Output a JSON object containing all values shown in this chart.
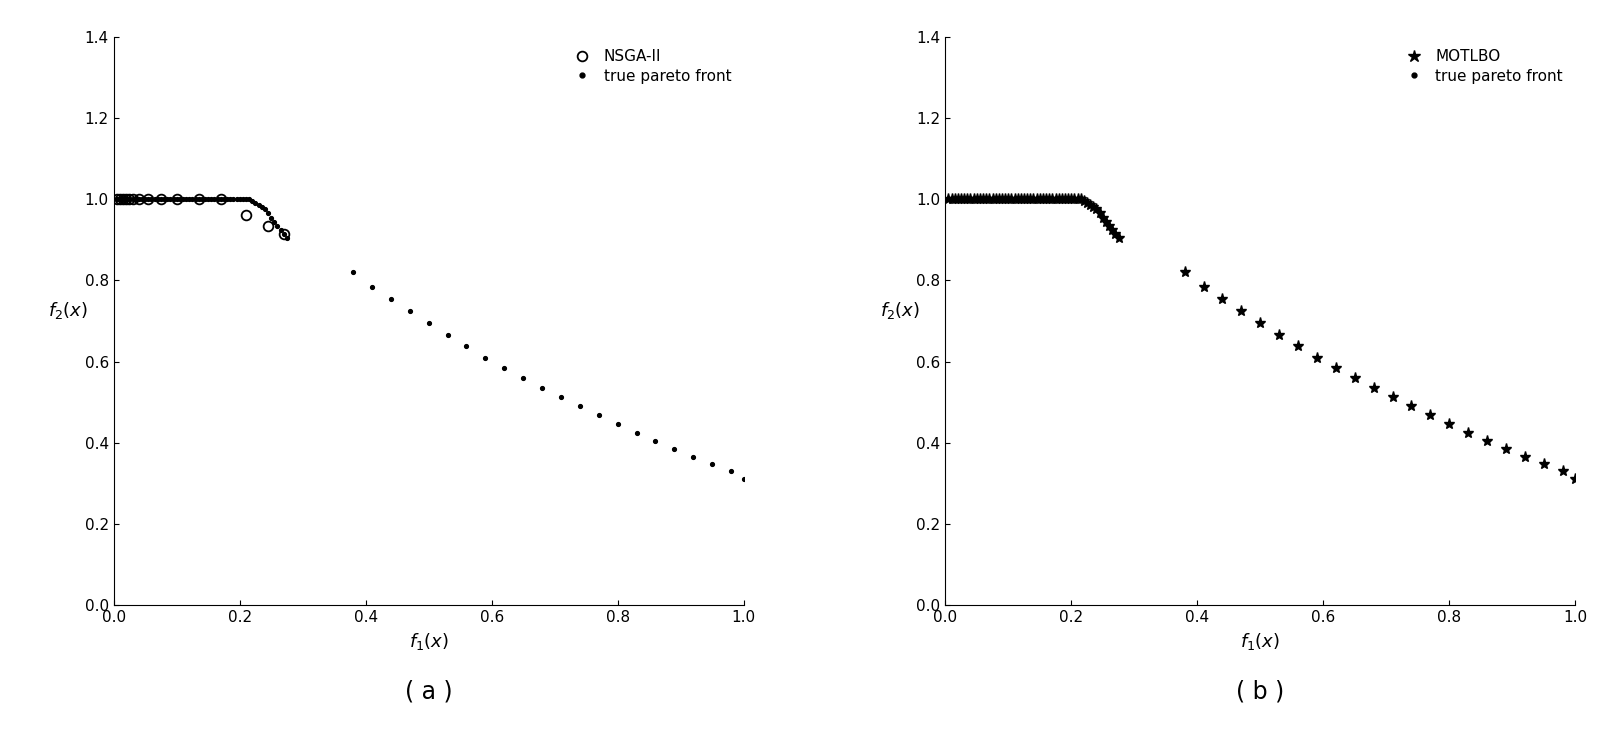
{
  "true_pareto_x": [
    0.005,
    0.01,
    0.015,
    0.02,
    0.025,
    0.03,
    0.035,
    0.04,
    0.045,
    0.05,
    0.055,
    0.06,
    0.065,
    0.07,
    0.075,
    0.08,
    0.085,
    0.09,
    0.095,
    0.1,
    0.105,
    0.11,
    0.115,
    0.12,
    0.125,
    0.13,
    0.135,
    0.14,
    0.145,
    0.15,
    0.155,
    0.16,
    0.165,
    0.17,
    0.175,
    0.18,
    0.185,
    0.19,
    0.195,
    0.2,
    0.205,
    0.21,
    0.215,
    0.22,
    0.225,
    0.23,
    0.235,
    0.24,
    0.245,
    0.25,
    0.255,
    0.26,
    0.265,
    0.27,
    0.275,
    0.38,
    0.41,
    0.44,
    0.47,
    0.5,
    0.53,
    0.56,
    0.59,
    0.62,
    0.65,
    0.68,
    0.71,
    0.74,
    0.77,
    0.8,
    0.83,
    0.86,
    0.89,
    0.92,
    0.95,
    0.98,
    1.0
  ],
  "true_pareto_y": [
    1.0,
    1.0,
    1.0,
    1.0,
    1.0,
    1.0,
    1.0,
    1.0,
    1.0,
    1.0,
    1.0,
    1.0,
    1.0,
    1.0,
    1.0,
    1.0,
    1.0,
    1.0,
    1.0,
    1.0,
    1.0,
    1.0,
    1.0,
    1.0,
    1.0,
    1.0,
    1.0,
    1.0,
    1.0,
    1.0,
    1.0,
    1.0,
    1.0,
    1.0,
    1.0,
    1.0,
    1.0,
    1.0,
    1.0,
    1.0,
    1.0,
    1.0,
    1.0,
    0.995,
    0.99,
    0.985,
    0.98,
    0.975,
    0.965,
    0.955,
    0.945,
    0.935,
    0.925,
    0.915,
    0.905,
    0.82,
    0.785,
    0.755,
    0.725,
    0.695,
    0.665,
    0.638,
    0.61,
    0.585,
    0.56,
    0.535,
    0.512,
    0.49,
    0.468,
    0.447,
    0.425,
    0.405,
    0.385,
    0.365,
    0.348,
    0.33,
    0.31
  ],
  "nsga2_x": [
    0.005,
    0.01,
    0.015,
    0.02,
    0.025,
    0.03,
    0.04,
    0.055,
    0.075,
    0.1,
    0.135,
    0.17,
    0.21,
    0.245,
    0.27
  ],
  "nsga2_y": [
    1.0,
    1.0,
    1.0,
    1.0,
    1.0,
    1.0,
    1.0,
    1.0,
    1.0,
    1.0,
    1.0,
    1.0,
    0.96,
    0.935,
    0.915
  ],
  "motlbo_x": [
    0.005,
    0.01,
    0.015,
    0.02,
    0.025,
    0.03,
    0.035,
    0.04,
    0.045,
    0.05,
    0.055,
    0.06,
    0.065,
    0.07,
    0.075,
    0.08,
    0.085,
    0.09,
    0.095,
    0.1,
    0.105,
    0.11,
    0.115,
    0.12,
    0.125,
    0.13,
    0.135,
    0.14,
    0.145,
    0.15,
    0.155,
    0.16,
    0.165,
    0.17,
    0.175,
    0.18,
    0.185,
    0.19,
    0.195,
    0.2,
    0.205,
    0.21,
    0.215,
    0.22,
    0.225,
    0.23,
    0.235,
    0.24,
    0.245,
    0.25,
    0.255,
    0.26,
    0.265,
    0.27,
    0.275,
    0.38,
    0.41,
    0.44,
    0.47,
    0.5,
    0.53,
    0.56,
    0.59,
    0.62,
    0.65,
    0.68,
    0.71,
    0.74,
    0.77,
    0.8,
    0.83,
    0.86,
    0.89,
    0.92,
    0.95,
    0.98,
    1.0
  ],
  "motlbo_y": [
    1.0,
    1.0,
    1.0,
    1.0,
    1.0,
    1.0,
    1.0,
    1.0,
    1.0,
    1.0,
    1.0,
    1.0,
    1.0,
    1.0,
    1.0,
    1.0,
    1.0,
    1.0,
    1.0,
    1.0,
    1.0,
    1.0,
    1.0,
    1.0,
    1.0,
    1.0,
    1.0,
    1.0,
    1.0,
    1.0,
    1.0,
    1.0,
    1.0,
    1.0,
    1.0,
    1.0,
    1.0,
    1.0,
    1.0,
    1.0,
    1.0,
    1.0,
    1.0,
    0.995,
    0.99,
    0.985,
    0.98,
    0.975,
    0.965,
    0.955,
    0.945,
    0.935,
    0.925,
    0.915,
    0.905,
    0.82,
    0.785,
    0.755,
    0.725,
    0.695,
    0.665,
    0.638,
    0.61,
    0.585,
    0.56,
    0.535,
    0.512,
    0.49,
    0.468,
    0.447,
    0.425,
    0.405,
    0.385,
    0.365,
    0.348,
    0.33,
    0.31
  ],
  "xlabel": "$f_1(x)$",
  "ylabel": "$f_2(x)$",
  "xlim": [
    0,
    1
  ],
  "ylim": [
    0,
    1.4
  ],
  "yticks": [
    0,
    0.2,
    0.4,
    0.6,
    0.8,
    1.0,
    1.2,
    1.4
  ],
  "xticks": [
    0,
    0.2,
    0.4,
    0.6,
    0.8,
    1.0
  ],
  "label_a": "( a )",
  "label_b": "( b )",
  "legend_nsga2": "NSGA-II",
  "legend_motlbo": "MOTLBO",
  "legend_pareto": "true pareto front",
  "color_black": "#000000",
  "bg_color": "#ffffff"
}
